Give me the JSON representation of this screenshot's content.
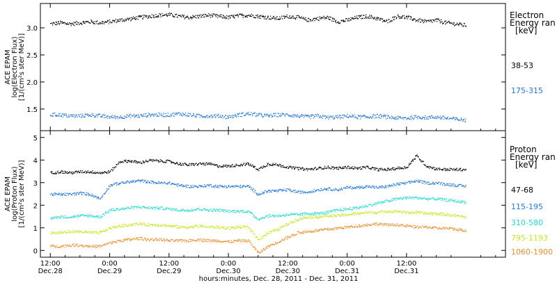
{
  "chart_data": [
    {
      "type": "scatter",
      "ylabel_lines": [
        "ACE EPAM",
        "log(Electron Flux)",
        "[1/(cm²s ster MeV)]"
      ],
      "ylim": [
        1.1,
        3.45
      ],
      "yticks": [
        "1.5",
        "2.0",
        "2.5",
        "3.0"
      ],
      "ytick_values": [
        1.5,
        2.0,
        2.5,
        3.0
      ],
      "legend_title": [
        "Electron",
        "Energy ran",
        "[keV]"
      ],
      "series": [
        {
          "name": "38-53",
          "color": "#000000",
          "x": [
            0,
            2,
            4,
            6,
            8,
            10,
            12,
            14,
            16,
            18,
            20,
            22,
            24,
            26,
            28,
            30,
            32,
            34,
            36,
            38,
            40,
            42,
            44,
            46,
            48,
            50,
            52,
            54,
            56,
            58,
            60,
            62,
            64,
            66,
            68,
            70,
            72,
            74,
            76,
            78,
            80,
            82,
            84
          ],
          "y": [
            3.08,
            3.1,
            3.08,
            3.1,
            3.12,
            3.1,
            3.12,
            3.15,
            3.17,
            3.2,
            3.22,
            3.24,
            3.25,
            3.22,
            3.2,
            3.22,
            3.24,
            3.22,
            3.2,
            3.23,
            3.24,
            3.22,
            3.2,
            3.18,
            3.22,
            3.2,
            3.15,
            3.18,
            3.2,
            3.12,
            3.15,
            3.2,
            3.22,
            3.18,
            3.12,
            3.22,
            3.2,
            3.15,
            3.12,
            3.15,
            3.1,
            3.08,
            3.05
          ]
        },
        {
          "name": "175-315",
          "color": "#1e78dc",
          "x": [
            0,
            2,
            4,
            6,
            8,
            10,
            12,
            14,
            16,
            18,
            20,
            22,
            24,
            26,
            28,
            30,
            32,
            34,
            36,
            38,
            40,
            42,
            44,
            46,
            48,
            50,
            52,
            54,
            56,
            58,
            60,
            62,
            64,
            66,
            68,
            70,
            72,
            74,
            76,
            78,
            80,
            82,
            84
          ],
          "y": [
            1.4,
            1.4,
            1.38,
            1.38,
            1.4,
            1.38,
            1.36,
            1.36,
            1.38,
            1.38,
            1.4,
            1.4,
            1.4,
            1.42,
            1.4,
            1.38,
            1.38,
            1.38,
            1.36,
            1.4,
            1.42,
            1.4,
            1.38,
            1.4,
            1.4,
            1.38,
            1.36,
            1.38,
            1.35,
            1.36,
            1.38,
            1.36,
            1.36,
            1.38,
            1.36,
            1.34,
            1.34,
            1.36,
            1.35,
            1.36,
            1.34,
            1.32,
            1.3
          ]
        }
      ]
    },
    {
      "type": "scatter",
      "ylabel_lines": [
        "ACE EPAM",
        "log(Proton Flux)",
        "[1/(cm²s ster MeV)]"
      ],
      "ylim": [
        -0.3,
        5.3
      ],
      "yticks": [
        "0",
        "1",
        "2",
        "3",
        "4",
        "5"
      ],
      "ytick_values": [
        0,
        1,
        2,
        3,
        4,
        5
      ],
      "legend_title": [
        "Proton",
        "Energy ran",
        "[keV]"
      ],
      "series": [
        {
          "name": "47-68",
          "color": "#000000",
          "x": [
            0,
            2,
            4,
            6,
            8,
            10,
            12,
            14,
            16,
            18,
            20,
            22,
            24,
            26,
            28,
            30,
            32,
            34,
            36,
            38,
            40,
            42,
            44,
            46,
            48,
            50,
            52,
            54,
            56,
            58,
            60,
            62,
            64,
            66,
            68,
            70,
            72,
            74,
            76,
            78,
            80,
            82,
            84
          ],
          "y": [
            3.45,
            3.5,
            3.45,
            3.5,
            3.5,
            3.45,
            3.5,
            3.95,
            3.98,
            3.9,
            4.0,
            3.98,
            3.95,
            3.85,
            3.8,
            3.85,
            3.85,
            3.75,
            3.75,
            3.8,
            3.85,
            3.6,
            3.85,
            3.8,
            3.7,
            3.65,
            3.6,
            3.65,
            3.7,
            3.65,
            3.7,
            3.65,
            3.7,
            3.6,
            3.6,
            3.65,
            3.7,
            4.2,
            3.75,
            3.62,
            3.6,
            3.6,
            3.6
          ]
        },
        {
          "name": "115-195",
          "color": "#1e78dc",
          "x": [
            0,
            2,
            4,
            6,
            8,
            10,
            12,
            14,
            16,
            18,
            20,
            22,
            24,
            26,
            28,
            30,
            32,
            34,
            36,
            38,
            40,
            42,
            44,
            46,
            48,
            50,
            52,
            54,
            56,
            58,
            60,
            62,
            64,
            66,
            68,
            70,
            72,
            74,
            76,
            78,
            80,
            82,
            84
          ],
          "y": [
            2.5,
            2.5,
            2.5,
            2.55,
            2.5,
            2.3,
            2.9,
            3.0,
            3.05,
            3.1,
            3.05,
            3.0,
            3.0,
            2.9,
            2.85,
            2.85,
            2.9,
            2.85,
            2.85,
            2.85,
            2.85,
            2.5,
            2.65,
            2.65,
            2.7,
            2.6,
            2.6,
            2.7,
            2.75,
            2.7,
            2.8,
            2.8,
            2.85,
            2.8,
            2.85,
            2.95,
            3.0,
            3.1,
            3.0,
            3.0,
            2.95,
            2.9,
            2.85
          ]
        },
        {
          "name": "310-580",
          "color": "#1edcd2",
          "x": [
            0,
            2,
            4,
            6,
            8,
            10,
            12,
            14,
            16,
            18,
            20,
            22,
            24,
            26,
            28,
            30,
            32,
            34,
            36,
            38,
            40,
            42,
            44,
            46,
            48,
            50,
            52,
            54,
            56,
            58,
            60,
            62,
            64,
            66,
            68,
            70,
            72,
            74,
            76,
            78,
            80,
            82,
            84
          ],
          "y": [
            1.45,
            1.5,
            1.5,
            1.55,
            1.55,
            1.5,
            1.8,
            1.85,
            1.9,
            1.95,
            1.9,
            1.9,
            1.85,
            1.8,
            1.8,
            1.85,
            1.8,
            1.8,
            1.75,
            1.75,
            1.75,
            1.4,
            1.55,
            1.55,
            1.6,
            1.6,
            1.65,
            1.65,
            1.7,
            1.8,
            1.85,
            1.9,
            2.0,
            2.1,
            2.2,
            2.3,
            2.35,
            2.35,
            2.3,
            2.3,
            2.25,
            2.2,
            2.15
          ]
        },
        {
          "name": "795-1193",
          "color": "#c8e61e",
          "x": [
            0,
            2,
            4,
            6,
            8,
            10,
            12,
            14,
            16,
            18,
            20,
            22,
            24,
            26,
            28,
            30,
            32,
            34,
            36,
            38,
            40,
            42,
            44,
            46,
            48,
            50,
            52,
            54,
            56,
            58,
            60,
            62,
            64,
            66,
            68,
            70,
            72,
            74,
            76,
            78,
            80,
            82,
            84
          ],
          "y": [
            0.8,
            0.8,
            0.85,
            0.85,
            0.8,
            0.8,
            1.0,
            1.1,
            1.15,
            1.2,
            1.15,
            1.15,
            1.1,
            1.05,
            1.05,
            1.1,
            1.05,
            1.05,
            1.0,
            1.05,
            1.05,
            0.5,
            0.8,
            0.95,
            1.2,
            1.4,
            1.5,
            1.5,
            1.55,
            1.55,
            1.6,
            1.65,
            1.7,
            1.7,
            1.75,
            1.75,
            1.7,
            1.7,
            1.65,
            1.65,
            1.6,
            1.55,
            1.5
          ]
        },
        {
          "name": "1060-1900",
          "color": "#f08c28",
          "x": [
            0,
            2,
            4,
            6,
            8,
            10,
            12,
            14,
            16,
            18,
            20,
            22,
            24,
            26,
            28,
            30,
            32,
            34,
            36,
            38,
            40,
            42,
            44,
            46,
            48,
            50,
            52,
            54,
            56,
            58,
            60,
            62,
            64,
            66,
            68,
            70,
            72,
            74,
            76,
            78,
            80,
            82,
            84
          ],
          "y": [
            0.2,
            0.2,
            0.25,
            0.25,
            0.2,
            0.2,
            0.35,
            0.45,
            0.5,
            0.55,
            0.5,
            0.5,
            0.45,
            0.45,
            0.45,
            0.5,
            0.45,
            0.45,
            0.4,
            0.45,
            0.45,
            -0.1,
            0.2,
            0.4,
            0.6,
            0.8,
            0.85,
            0.9,
            0.95,
            1.0,
            1.05,
            1.1,
            1.15,
            1.2,
            1.15,
            1.15,
            1.1,
            1.05,
            1.05,
            1.0,
            1.0,
            0.95,
            0.9
          ]
        }
      ]
    }
  ],
  "x_axis": {
    "range_hours": [
      -2,
      92
    ],
    "ticks": [
      {
        "hour": 0,
        "time": "12:00",
        "date": "Dec.28"
      },
      {
        "hour": 12,
        "time": "0:00",
        "date": "Dec.29"
      },
      {
        "hour": 24,
        "time": "12:00",
        "date": "Dec.29"
      },
      {
        "hour": 36,
        "time": "0:00",
        "date": "Dec.30"
      },
      {
        "hour": 48,
        "time": "12:00",
        "date": "Dec.30"
      },
      {
        "hour": 60,
        "time": "0:00",
        "date": "Dec.31"
      },
      {
        "hour": 72,
        "time": "12:00",
        "date": "Dec.31"
      }
    ],
    "label": "hours:minutes, Dec. 28, 2011 - Dec. 31, 2011"
  }
}
